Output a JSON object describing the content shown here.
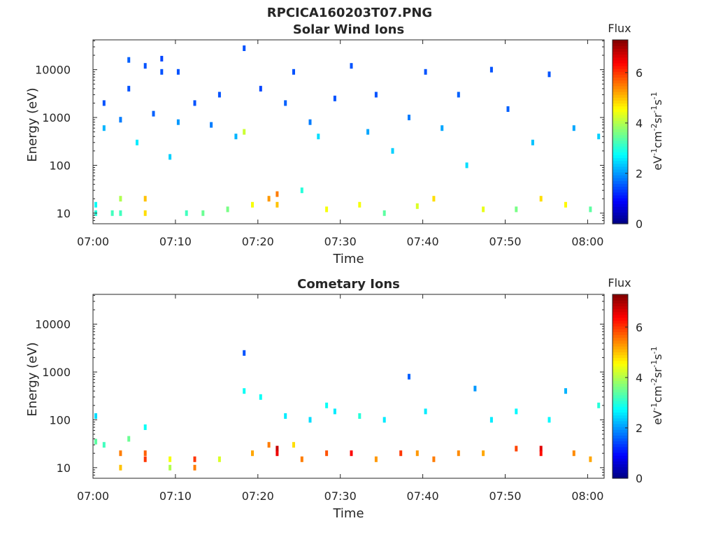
{
  "figure_title": "RPCICA160203T07.PNG",
  "chart_data": [
    {
      "type": "heatmap",
      "title": "Solar Wind Ions",
      "xlabel": "Time",
      "ylabel": "Energy (eV)",
      "yscale": "log",
      "xlim": [
        "07:00",
        "08:02"
      ],
      "ylim": [
        6,
        42000
      ],
      "x_ticks": [
        "07:00",
        "07:10",
        "07:20",
        "07:30",
        "07:40",
        "07:50",
        "08:00"
      ],
      "y_ticks": [
        "10",
        "100",
        "1000",
        "10000"
      ],
      "colorbar": {
        "title": "Flux",
        "label": "eV-1cm-2sr-1s-1",
        "range": [
          0,
          7.3
        ],
        "ticks": [
          "0",
          "2",
          "4",
          "6"
        ],
        "colormap": "jet"
      },
      "cells": [
        [
          "07:00",
          10,
          3
        ],
        [
          "07:00",
          15,
          2.8
        ],
        [
          "07:01",
          600,
          2.2
        ],
        [
          "07:01",
          2000,
          1.5
        ],
        [
          "07:02",
          10,
          3.2
        ],
        [
          "07:03",
          20,
          4
        ],
        [
          "07:03",
          10,
          3.2
        ],
        [
          "07:03",
          900,
          1.8
        ],
        [
          "07:04",
          16000,
          1.6
        ],
        [
          "07:04",
          4000,
          1.5
        ],
        [
          "07:05",
          300,
          2.6
        ],
        [
          "07:06",
          20,
          5
        ],
        [
          "07:06",
          10,
          4.8
        ],
        [
          "07:06",
          12000,
          1.5
        ],
        [
          "07:07",
          1200,
          1.6
        ],
        [
          "07:08",
          17000,
          1.4
        ],
        [
          "07:08",
          9000,
          1.5
        ],
        [
          "07:09",
          150,
          2.4
        ],
        [
          "07:10",
          9000,
          1.5
        ],
        [
          "07:10",
          800,
          2.0
        ],
        [
          "07:11",
          10,
          3.2
        ],
        [
          "07:12",
          2000,
          1.5
        ],
        [
          "07:13",
          10,
          3.5
        ],
        [
          "07:14",
          700,
          1.8
        ],
        [
          "07:15",
          3000,
          1.5
        ],
        [
          "07:16",
          12,
          3.6
        ],
        [
          "07:17",
          400,
          2.2
        ],
        [
          "07:18",
          28000,
          1.5
        ],
        [
          "07:18",
          500,
          4.2
        ],
        [
          "07:19",
          15,
          4.5
        ],
        [
          "07:20",
          4000,
          1.4
        ],
        [
          "07:21",
          20,
          5.3
        ],
        [
          "07:22",
          25,
          5.5
        ],
        [
          "07:22",
          15,
          5.0
        ],
        [
          "07:23",
          2000,
          1.6
        ],
        [
          "07:24",
          9000,
          1.5
        ],
        [
          "07:25",
          30,
          3.0
        ],
        [
          "07:26",
          800,
          1.8
        ],
        [
          "07:27",
          400,
          2.5
        ],
        [
          "07:28",
          12,
          4.5
        ],
        [
          "07:29",
          2500,
          1.5
        ],
        [
          "07:31",
          12000,
          1.5
        ],
        [
          "07:32",
          15,
          4.5
        ],
        [
          "07:33",
          500,
          2.1
        ],
        [
          "07:34",
          3000,
          1.5
        ],
        [
          "07:35",
          10,
          3.4
        ],
        [
          "07:36",
          200,
          2.4
        ],
        [
          "07:38",
          1000,
          1.8
        ],
        [
          "07:39",
          14,
          4.3
        ],
        [
          "07:40",
          9000,
          1.5
        ],
        [
          "07:41",
          20,
          4.8
        ],
        [
          "07:42",
          600,
          2.1
        ],
        [
          "07:44",
          3000,
          1.6
        ],
        [
          "07:45",
          100,
          2.5
        ],
        [
          "07:47",
          12,
          4.4
        ],
        [
          "07:48",
          10000,
          1.5
        ],
        [
          "07:50",
          1500,
          1.6
        ],
        [
          "07:51",
          12,
          3.6
        ],
        [
          "07:53",
          300,
          2.3
        ],
        [
          "07:54",
          20,
          4.8
        ],
        [
          "07:55",
          8000,
          1.5
        ],
        [
          "07:57",
          15,
          4.6
        ],
        [
          "07:58",
          600,
          2.1
        ],
        [
          "08:00",
          12,
          3.4
        ],
        [
          "08:01",
          400,
          2.4
        ]
      ]
    },
    {
      "type": "heatmap",
      "title": "Cometary Ions",
      "xlabel": "Time",
      "ylabel": "Energy (eV)",
      "yscale": "log",
      "xlim": [
        "07:00",
        "08:02"
      ],
      "ylim": [
        6,
        42000
      ],
      "x_ticks": [
        "07:00",
        "07:10",
        "07:20",
        "07:30",
        "07:40",
        "07:50",
        "08:00"
      ],
      "y_ticks": [
        "10",
        "100",
        "1000",
        "10000"
      ],
      "colorbar": {
        "title": "Flux",
        "label": "eV-1cm-2sr-1s-1",
        "range": [
          0,
          7.3
        ],
        "ticks": [
          "0",
          "2",
          "4",
          "6"
        ],
        "colormap": "jet"
      },
      "cells": [
        [
          "07:00",
          35,
          3.4
        ],
        [
          "07:00",
          120,
          2.5
        ],
        [
          "07:01",
          30,
          3.2
        ],
        [
          "07:03",
          20,
          5.5
        ],
        [
          "07:03",
          10,
          5.0
        ],
        [
          "07:04",
          40,
          3.5
        ],
        [
          "07:06",
          20,
          5.7
        ],
        [
          "07:06",
          15,
          6.0
        ],
        [
          "07:06",
          70,
          2.8
        ],
        [
          "07:09",
          15,
          4.5
        ],
        [
          "07:09",
          10,
          4.0
        ],
        [
          "07:12",
          15,
          6.0
        ],
        [
          "07:12",
          10,
          5.5
        ],
        [
          "07:15",
          15,
          4.3
        ],
        [
          "07:18",
          2500,
          1.5
        ],
        [
          "07:18",
          400,
          2.8
        ],
        [
          "07:19",
          20,
          5.2
        ],
        [
          "07:20",
          300,
          2.8
        ],
        [
          "07:21",
          30,
          5.5
        ],
        [
          "07:22",
          25,
          6.8
        ],
        [
          "07:22",
          20,
          6.5
        ],
        [
          "07:23",
          120,
          2.6
        ],
        [
          "07:24",
          30,
          4.8
        ],
        [
          "07:25",
          15,
          5.5
        ],
        [
          "07:26",
          100,
          2.5
        ],
        [
          "07:28",
          20,
          5.8
        ],
        [
          "07:28",
          200,
          2.8
        ],
        [
          "07:29",
          150,
          2.6
        ],
        [
          "07:31",
          20,
          6.4
        ],
        [
          "07:32",
          120,
          3.0
        ],
        [
          "07:34",
          15,
          5.3
        ],
        [
          "07:35",
          100,
          2.6
        ],
        [
          "07:37",
          20,
          6.0
        ],
        [
          "07:38",
          800,
          1.6
        ],
        [
          "07:39",
          20,
          5.3
        ],
        [
          "07:40",
          150,
          2.6
        ],
        [
          "07:41",
          15,
          5.5
        ],
        [
          "07:44",
          20,
          5.4
        ],
        [
          "07:46",
          450,
          2.0
        ],
        [
          "07:47",
          20,
          5.2
        ],
        [
          "07:48",
          100,
          2.6
        ],
        [
          "07:51",
          25,
          5.9
        ],
        [
          "07:51",
          150,
          2.7
        ],
        [
          "07:54",
          25,
          6.6
        ],
        [
          "07:54",
          20,
          6.3
        ],
        [
          "07:55",
          100,
          2.7
        ],
        [
          "07:57",
          400,
          2.2
        ],
        [
          "07:58",
          20,
          5.4
        ],
        [
          "08:00",
          15,
          5.2
        ],
        [
          "08:01",
          200,
          3.0
        ]
      ]
    }
  ]
}
